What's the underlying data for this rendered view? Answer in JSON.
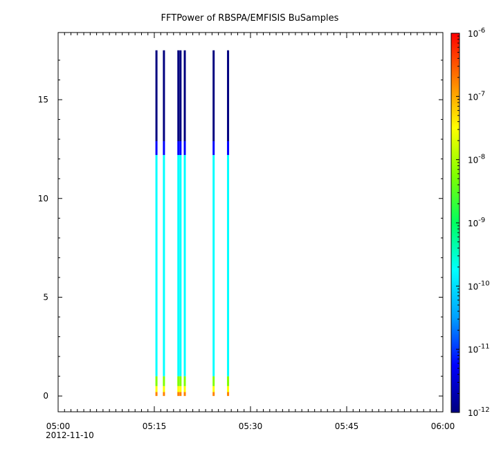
{
  "chart_data": {
    "type": "heatmap",
    "title": "FFTPower of RBSPA/EMFISIS  BuSamples",
    "xlabel": "",
    "ylabel": "",
    "x_ticks": [
      "05:00",
      "05:15",
      "05:30",
      "05:45",
      "06:00"
    ],
    "x_date_label": "2012-11-10",
    "x_range": [
      "2012-11-10 05:00",
      "2012-11-10 06:00"
    ],
    "y_ticks": [
      0,
      5,
      10,
      15
    ],
    "ylim": [
      -0.8,
      18.4
    ],
    "colorbar": {
      "scale": "log",
      "range": [
        1e-12,
        1e-06
      ],
      "tick_base": "10",
      "tick_exponents": [
        "-12",
        "-11",
        "-10",
        "-9",
        "-8",
        "-7",
        "-6"
      ],
      "colormap": [
        "#00007f",
        "#0000ff",
        "#00a0ff",
        "#00ffff",
        "#00ff60",
        "#80ff00",
        "#ffff00",
        "#ff8000",
        "#ff0000"
      ]
    },
    "data_columns": [
      {
        "time": "05:15:20",
        "y_max": 17.5
      },
      {
        "time": "05:16:30",
        "y_max": 17.5
      },
      {
        "time": "05:18:45",
        "y_max": 17.5
      },
      {
        "time": "05:19:05",
        "y_max": 17.5
      },
      {
        "time": "05:19:45",
        "y_max": 17.5
      },
      {
        "time": "05:24:15",
        "y_max": 17.5
      },
      {
        "time": "05:26:30",
        "y_max": 17.5
      }
    ],
    "spectral_profile": [
      {
        "y_from": 0.0,
        "y_to": 0.2,
        "power": 1e-07
      },
      {
        "y_from": 0.2,
        "y_to": 0.5,
        "power": 5e-08
      },
      {
        "y_from": 0.5,
        "y_to": 1.0,
        "power": 3e-09
      },
      {
        "y_from": 1.0,
        "y_to": 12.2,
        "power": 1e-10
      },
      {
        "y_from": 12.2,
        "y_to": 12.9,
        "power": 1e-11
      },
      {
        "y_from": 12.9,
        "y_to": 17.5,
        "power": 1e-12
      }
    ]
  }
}
